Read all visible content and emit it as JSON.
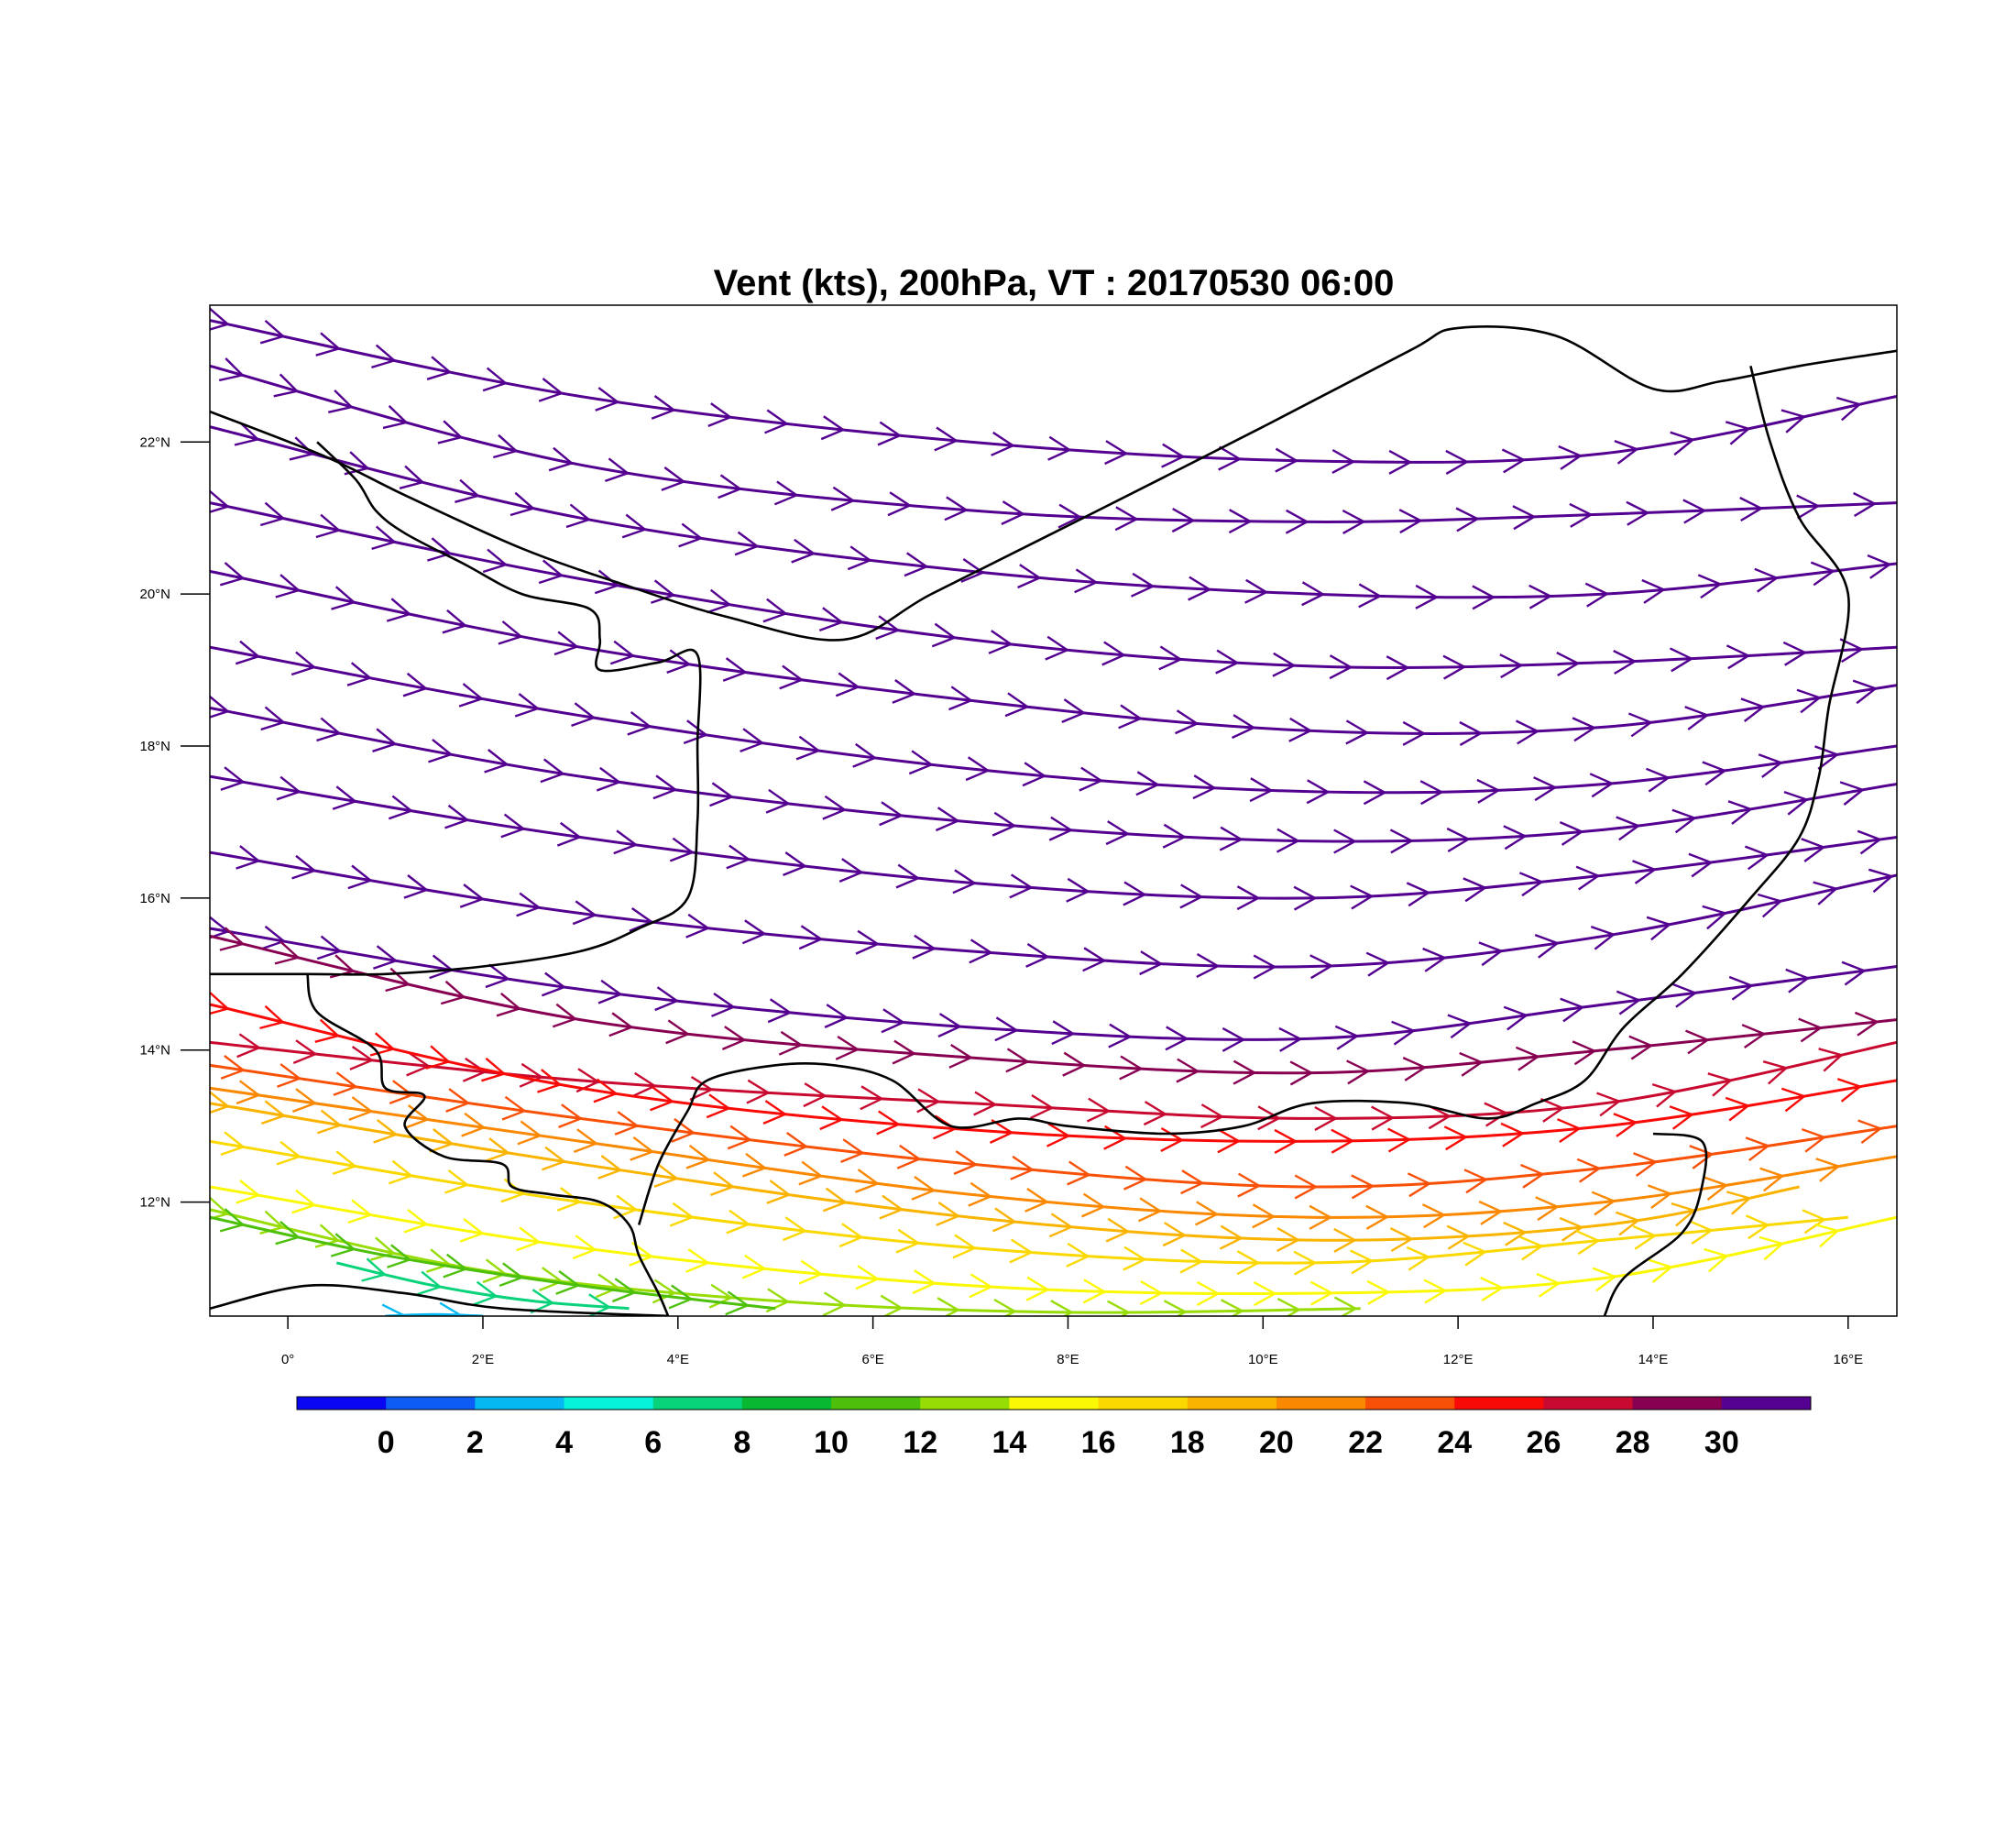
{
  "title": "Vent (kts), 200hPa, VT : 20170530  06:00",
  "map": {
    "lon_range": [
      -0.8,
      16.5
    ],
    "lat_range": [
      10.5,
      23.8
    ],
    "lon_ticks": [
      {
        "value": 0,
        "label": "0°"
      },
      {
        "value": 2,
        "label": "2°E"
      },
      {
        "value": 4,
        "label": "4°E"
      },
      {
        "value": 6,
        "label": "6°E"
      },
      {
        "value": 8,
        "label": "8°E"
      },
      {
        "value": 10,
        "label": "10°E"
      },
      {
        "value": 12,
        "label": "12°E"
      },
      {
        "value": 14,
        "label": "14°E"
      },
      {
        "value": 16,
        "label": "16°E"
      }
    ],
    "lat_ticks": [
      {
        "value": 12,
        "label": "12°N"
      },
      {
        "value": 14,
        "label": "14°N"
      },
      {
        "value": 16,
        "label": "16°N"
      },
      {
        "value": 18,
        "label": "18°N"
      },
      {
        "value": 20,
        "label": "20°N"
      },
      {
        "value": 22,
        "label": "22°N"
      }
    ]
  },
  "colorbar": {
    "labels": [
      "0",
      "2",
      "4",
      "6",
      "8",
      "10",
      "12",
      "14",
      "16",
      "18",
      "20",
      "22",
      "24",
      "26",
      "28",
      "30"
    ],
    "colors": [
      "#0a06f2",
      "#0c5cf5",
      "#06b8f2",
      "#06f2da",
      "#08d27a",
      "#06b832",
      "#4cc00a",
      "#98dc06",
      "#fbf806",
      "#fad800",
      "#fab400",
      "#fa8800",
      "#f85006",
      "#f80a06",
      "#c80a30",
      "#880052",
      "#540090"
    ]
  },
  "chart_data": {
    "type": "streamline",
    "variable": "wind speed",
    "units": "kts",
    "level": "200hPa",
    "valid_time": "20170530 06:00",
    "streamlines": [
      {
        "speed": 31,
        "points": [
          [
            -0.8,
            23.6
          ],
          [
            3,
            22.6
          ],
          [
            7,
            22.0
          ],
          [
            10.5,
            21.75
          ],
          [
            13.5,
            21.85
          ],
          [
            16.5,
            22.6
          ]
        ]
      },
      {
        "speed": 31,
        "points": [
          [
            -0.8,
            23.0
          ],
          [
            3,
            21.7
          ],
          [
            7,
            21.1
          ],
          [
            10.5,
            20.95
          ],
          [
            13.5,
            21.05
          ],
          [
            16.5,
            21.2
          ]
        ]
      },
      {
        "speed": 31,
        "points": [
          [
            -0.8,
            22.2
          ],
          [
            3,
            21.0
          ],
          [
            7,
            20.3
          ],
          [
            10.5,
            20.0
          ],
          [
            13.5,
            20.0
          ],
          [
            16.5,
            20.4
          ]
        ]
      },
      {
        "speed": 31,
        "points": [
          [
            -0.8,
            21.2
          ],
          [
            3,
            20.2
          ],
          [
            7,
            19.4
          ],
          [
            10.5,
            19.05
          ],
          [
            13.5,
            19.1
          ],
          [
            16.5,
            19.3
          ]
        ]
      },
      {
        "speed": 31,
        "points": [
          [
            -0.8,
            20.3
          ],
          [
            3,
            19.3
          ],
          [
            7,
            18.6
          ],
          [
            10.5,
            18.2
          ],
          [
            13.5,
            18.25
          ],
          [
            16.5,
            18.8
          ]
        ]
      },
      {
        "speed": 31,
        "points": [
          [
            -0.8,
            19.3
          ],
          [
            3,
            18.4
          ],
          [
            7,
            17.7
          ],
          [
            10.5,
            17.4
          ],
          [
            13.5,
            17.5
          ],
          [
            16.5,
            18.0
          ]
        ]
      },
      {
        "speed": 31,
        "points": [
          [
            -0.8,
            18.5
          ],
          [
            3,
            17.6
          ],
          [
            7,
            17.0
          ],
          [
            10.5,
            16.75
          ],
          [
            13.5,
            16.9
          ],
          [
            16.5,
            17.5
          ]
        ]
      },
      {
        "speed": 31,
        "points": [
          [
            -0.8,
            17.6
          ],
          [
            3,
            16.8
          ],
          [
            7,
            16.2
          ],
          [
            10.5,
            16.0
          ],
          [
            13.5,
            16.3
          ],
          [
            16.5,
            16.8
          ]
        ]
      },
      {
        "speed": 31,
        "points": [
          [
            -0.8,
            16.6
          ],
          [
            3,
            15.8
          ],
          [
            7,
            15.3
          ],
          [
            10.5,
            15.1
          ],
          [
            13.5,
            15.5
          ],
          [
            16.5,
            16.3
          ]
        ]
      },
      {
        "speed": 31,
        "points": [
          [
            -0.8,
            15.6
          ],
          [
            3,
            14.8
          ],
          [
            7,
            14.3
          ],
          [
            10.5,
            14.15
          ],
          [
            13.5,
            14.6
          ],
          [
            16.5,
            15.1
          ]
        ]
      },
      {
        "speed": 29,
        "points": [
          [
            -0.8,
            15.5
          ],
          [
            3,
            14.4
          ],
          [
            7,
            13.9
          ],
          [
            10.5,
            13.7
          ],
          [
            13.5,
            14.0
          ],
          [
            16.5,
            14.4
          ]
        ]
      },
      {
        "speed": 27,
        "points": [
          [
            -0.8,
            14.1
          ],
          [
            3,
            13.6
          ],
          [
            7,
            13.3
          ],
          [
            10.5,
            13.1
          ],
          [
            13.5,
            13.3
          ],
          [
            16.5,
            14.1
          ]
        ]
      },
      {
        "speed": 25,
        "points": [
          [
            -0.8,
            14.6
          ],
          [
            3,
            13.5
          ],
          [
            7,
            12.95
          ],
          [
            10.5,
            12.8
          ],
          [
            13.5,
            13.0
          ],
          [
            16.5,
            13.6
          ]
        ]
      },
      {
        "speed": 23,
        "points": [
          [
            -0.8,
            13.8
          ],
          [
            3,
            13.1
          ],
          [
            7,
            12.5
          ],
          [
            10.5,
            12.2
          ],
          [
            13.5,
            12.45
          ],
          [
            16.5,
            13.0
          ]
        ]
      },
      {
        "speed": 21,
        "points": [
          [
            -0.8,
            13.5
          ],
          [
            3,
            12.8
          ],
          [
            7,
            12.1
          ],
          [
            10.5,
            11.8
          ],
          [
            13.5,
            12.0
          ],
          [
            16.5,
            12.6
          ]
        ]
      },
      {
        "speed": 19,
        "points": [
          [
            -0.8,
            13.3
          ],
          [
            3,
            12.5
          ],
          [
            7,
            11.8
          ],
          [
            10.5,
            11.5
          ],
          [
            13.5,
            11.7
          ],
          [
            15.5,
            12.2
          ]
        ]
      },
      {
        "speed": 17,
        "points": [
          [
            -0.8,
            12.8
          ],
          [
            3,
            12.0
          ],
          [
            7,
            11.4
          ],
          [
            10.5,
            11.2
          ],
          [
            13.5,
            11.5
          ],
          [
            16.0,
            11.8
          ]
        ]
      },
      {
        "speed": 15,
        "points": [
          [
            -0.8,
            12.2
          ],
          [
            3,
            11.4
          ],
          [
            7,
            10.9
          ],
          [
            10.5,
            10.8
          ],
          [
            13.5,
            11.0
          ],
          [
            16.5,
            11.8
          ]
        ]
      },
      {
        "speed": 13,
        "points": [
          [
            -0.8,
            11.9
          ],
          [
            2,
            11.1
          ],
          [
            5,
            10.7
          ],
          [
            8,
            10.55
          ],
          [
            11,
            10.6
          ]
        ]
      },
      {
        "speed": 11,
        "points": [
          [
            -0.8,
            11.8
          ],
          [
            1,
            11.3
          ],
          [
            3,
            10.9
          ],
          [
            5,
            10.6
          ]
        ]
      },
      {
        "speed": 7,
        "points": [
          [
            0.5,
            11.2
          ],
          [
            1.5,
            10.9
          ],
          [
            2.5,
            10.7
          ],
          [
            3.5,
            10.6
          ]
        ]
      },
      {
        "speed": 3,
        "points": [
          [
            1.0,
            10.5
          ],
          [
            1.5,
            10.52
          ],
          [
            2.0,
            10.5
          ]
        ]
      }
    ]
  },
  "boundaries": [
    {
      "points": [
        [
          -0.8,
          22.4
        ],
        [
          0.4,
          21.8
        ],
        [
          1.2,
          21.3
        ],
        [
          2.4,
          20.6
        ],
        [
          3.5,
          20.1
        ],
        [
          4.5,
          19.7
        ],
        [
          5.7,
          19.4
        ],
        [
          6.6,
          20.0
        ],
        [
          8.0,
          20.9
        ],
        [
          10.0,
          22.2
        ],
        [
          11.5,
          23.2
        ],
        [
          12.0,
          23.5
        ],
        [
          13.0,
          23.4
        ],
        [
          14.0,
          22.7
        ],
        [
          14.7,
          22.8
        ],
        [
          15.5,
          23.0
        ],
        [
          16.5,
          23.2
        ]
      ]
    },
    {
      "points": [
        [
          -0.8,
          15.0
        ],
        [
          0.2,
          15.0
        ],
        [
          1.0,
          15.0
        ],
        [
          2.0,
          15.1
        ],
        [
          3.0,
          15.3
        ],
        [
          3.6,
          15.6
        ],
        [
          4.1,
          16.0
        ],
        [
          4.2,
          17.0
        ],
        [
          4.2,
          18.0
        ],
        [
          4.2,
          19.2
        ],
        [
          3.8,
          19.1
        ],
        [
          3.2,
          19.0
        ],
        [
          3.2,
          19.4
        ],
        [
          3.1,
          19.8
        ],
        [
          2.4,
          20.0
        ],
        [
          1.8,
          20.4
        ],
        [
          1.2,
          20.8
        ],
        [
          0.9,
          21.1
        ],
        [
          0.7,
          21.5
        ],
        [
          0.3,
          22.0
        ]
      ]
    },
    {
      "points": [
        [
          0.2,
          15.0
        ],
        [
          0.3,
          14.5
        ],
        [
          0.9,
          14.0
        ],
        [
          1.0,
          13.5
        ],
        [
          1.4,
          13.4
        ],
        [
          1.2,
          13.0
        ],
        [
          1.6,
          12.6
        ],
        [
          2.2,
          12.5
        ],
        [
          2.3,
          12.2
        ],
        [
          2.7,
          12.1
        ],
        [
          3.2,
          12.0
        ],
        [
          3.5,
          11.7
        ],
        [
          3.6,
          11.3
        ],
        [
          3.8,
          10.8
        ],
        [
          3.9,
          10.5
        ]
      ]
    },
    {
      "points": [
        [
          3.6,
          11.7
        ],
        [
          3.8,
          12.5
        ],
        [
          4.1,
          13.2
        ],
        [
          4.3,
          13.6
        ],
        [
          5.0,
          13.8
        ],
        [
          5.6,
          13.8
        ],
        [
          6.2,
          13.6
        ],
        [
          6.8,
          13.0
        ],
        [
          7.5,
          13.1
        ],
        [
          8.0,
          13.0
        ],
        [
          9.0,
          12.9
        ],
        [
          9.8,
          13.0
        ],
        [
          10.5,
          13.3
        ],
        [
          11.5,
          13.3
        ],
        [
          12.3,
          13.1
        ],
        [
          12.8,
          13.3
        ],
        [
          13.3,
          13.6
        ],
        [
          13.7,
          14.3
        ],
        [
          14.3,
          15.0
        ],
        [
          15.0,
          16.0
        ],
        [
          15.5,
          16.8
        ],
        [
          15.7,
          17.6
        ],
        [
          15.8,
          18.5
        ],
        [
          16.0,
          20.0
        ],
        [
          15.5,
          21.0
        ],
        [
          15.2,
          22.0
        ],
        [
          15.0,
          23.0
        ]
      ]
    },
    {
      "points": [
        [
          13.5,
          10.5
        ],
        [
          13.7,
          11.0
        ],
        [
          14.3,
          11.6
        ],
        [
          14.5,
          12.2
        ],
        [
          14.5,
          12.8
        ],
        [
          14.0,
          12.9
        ]
      ]
    },
    {
      "points": [
        [
          -0.8,
          10.6
        ],
        [
          0.2,
          10.9
        ],
        [
          1.2,
          10.8
        ],
        [
          2.2,
          10.6
        ],
        [
          3.9,
          10.5
        ]
      ]
    }
  ]
}
